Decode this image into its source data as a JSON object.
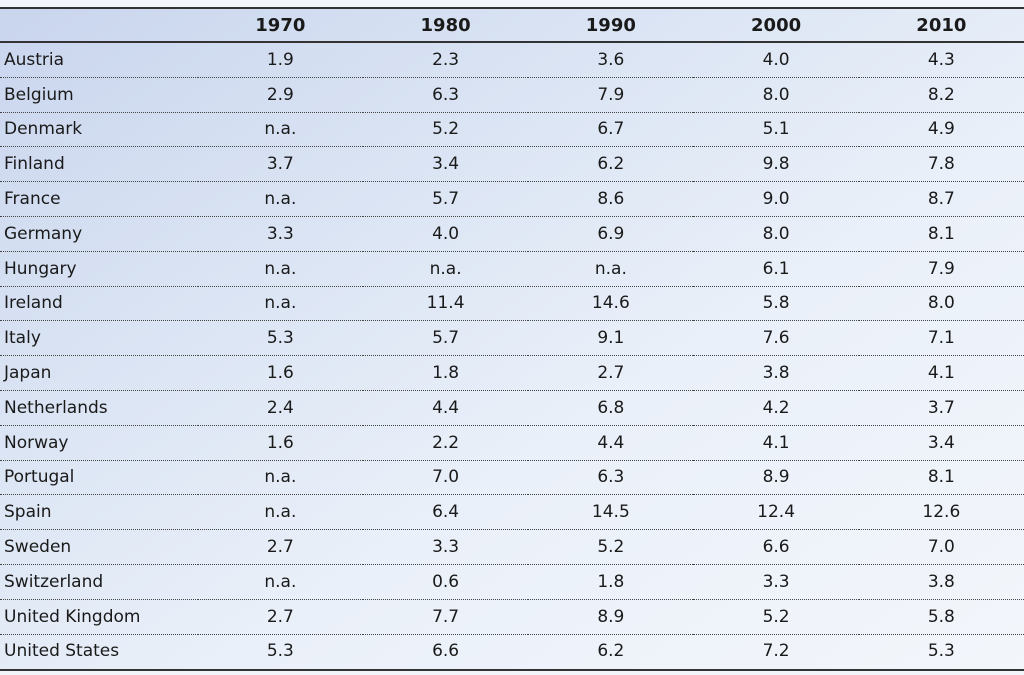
{
  "table": {
    "columns": [
      "",
      "1970",
      "1980",
      "1990",
      "2000",
      "2010"
    ],
    "rows": [
      [
        "Austria",
        "1.9",
        "2.3",
        "3.6",
        "4.0",
        "4.3"
      ],
      [
        "Belgium",
        "2.9",
        "6.3",
        "7.9",
        "8.0",
        "8.2"
      ],
      [
        "Denmark",
        "n.a.",
        "5.2",
        "6.7",
        "5.1",
        "4.9"
      ],
      [
        "Finland",
        "3.7",
        "3.4",
        "6.2",
        "9.8",
        "7.8"
      ],
      [
        "France",
        "n.a.",
        "5.7",
        "8.6",
        "9.0",
        "8.7"
      ],
      [
        "Germany",
        "3.3",
        "4.0",
        "6.9",
        "8.0",
        "8.1"
      ],
      [
        "Hungary",
        "n.a.",
        "n.a.",
        "n.a.",
        "6.1",
        "7.9"
      ],
      [
        "Ireland",
        "n.a.",
        "11.4",
        "14.6",
        "5.8",
        "8.0"
      ],
      [
        "Italy",
        "5.3",
        "5.7",
        "9.1",
        "7.6",
        "7.1"
      ],
      [
        "Japan",
        "1.6",
        "1.8",
        "2.7",
        "3.8",
        "4.1"
      ],
      [
        "Netherlands",
        "2.4",
        "4.4",
        "6.8",
        "4.2",
        "3.7"
      ],
      [
        "Norway",
        "1.6",
        "2.2",
        "4.4",
        "4.1",
        "3.4"
      ],
      [
        "Portugal",
        "n.a.",
        "7.0",
        "6.3",
        "8.9",
        "8.1"
      ],
      [
        "Spain",
        "n.a.",
        "6.4",
        "14.5",
        "12.4",
        "12.6"
      ],
      [
        "Sweden",
        "2.7",
        "3.3",
        "5.2",
        "6.6",
        "7.0"
      ],
      [
        "Switzerland",
        "n.a.",
        "0.6",
        "1.8",
        "3.3",
        "3.8"
      ],
      [
        "United Kingdom",
        "2.7",
        "7.7",
        "8.9",
        "5.2",
        "5.8"
      ],
      [
        "United States",
        "5.3",
        "6.6",
        "6.2",
        "7.2",
        "5.3"
      ]
    ]
  },
  "colors": {
    "rule": "#333333",
    "gradient_start": "#c9d5ee",
    "gradient_end": "#f3f6fb"
  }
}
